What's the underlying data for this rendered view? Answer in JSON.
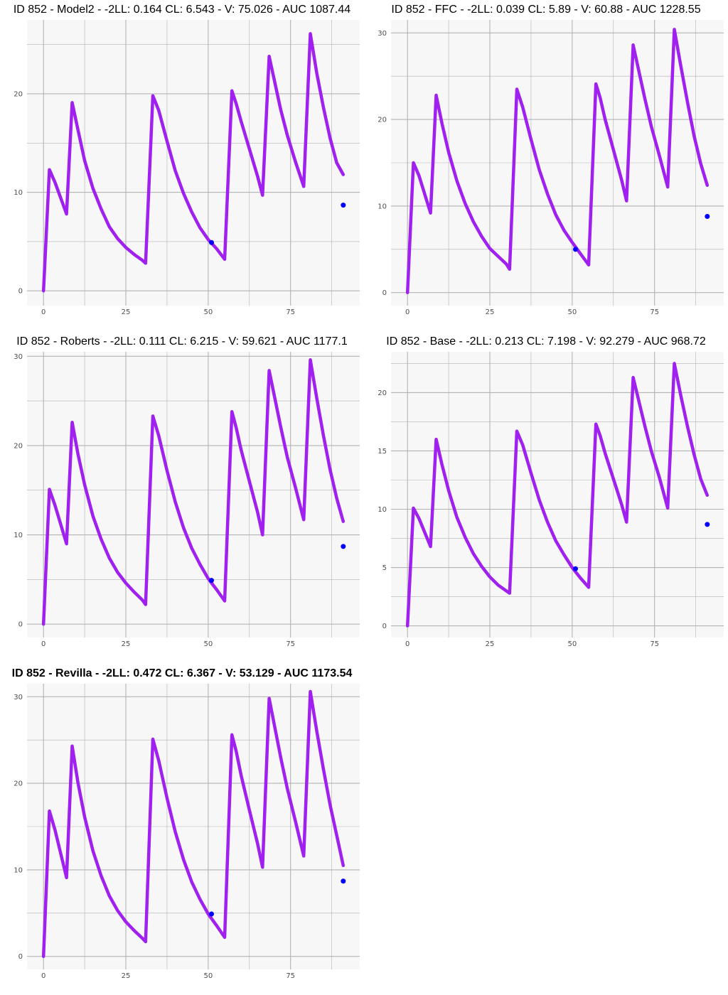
{
  "colors": {
    "curve": "#a020f0",
    "observed": "#0000ff",
    "panel_bg": "#f7f7f7",
    "grid": "#b3b3b3"
  },
  "chart_data": [
    {
      "type": "line",
      "title": "ID 852 - Model2 - -2LL: 0.164 CL: 6.543 - V: 75.026 - AUC 1087.44",
      "title_bold": false,
      "xlim": [
        -5,
        96
      ],
      "ylim": [
        -1.5,
        27.5
      ],
      "xticks": [
        0,
        25,
        50,
        75
      ],
      "yticks": [
        0,
        10,
        20
      ],
      "x": [
        0,
        1.8,
        3.5,
        7,
        8.7,
        10.5,
        12.5,
        15,
        17.5,
        20,
        22.5,
        25,
        27.5,
        30,
        31,
        33.2,
        35,
        37.5,
        40,
        42.5,
        45,
        47.5,
        50,
        52.5,
        55,
        57.2,
        58.5,
        60,
        62.5,
        65,
        66.5,
        68.5,
        72,
        74,
        76.5,
        79,
        81,
        83,
        85,
        87,
        89,
        91
      ],
      "y": [
        0,
        12.3,
        11,
        7.8,
        19.1,
        16.3,
        13.2,
        10.4,
        8.3,
        6.5,
        5.3,
        4.4,
        3.7,
        3.1,
        2.8,
        19.8,
        18.3,
        15.2,
        12.2,
        9.9,
        8.0,
        6.4,
        5.2,
        4.3,
        3.2,
        20.3,
        19,
        17.2,
        14.4,
        11.6,
        9.7,
        23.8,
        18.4,
        15.8,
        13.1,
        10.6,
        26.1,
        22,
        18.6,
        15.5,
        13.0,
        11.8
      ],
      "observed": [
        {
          "x": 51,
          "y": 4.9
        },
        {
          "x": 91,
          "y": 8.7
        }
      ]
    },
    {
      "type": "line",
      "title": "ID 852 - FFC - -2LL: 0.039 CL: 5.89 - V: 60.88 - AUC 1228.55",
      "title_bold": false,
      "xlim": [
        -5,
        96
      ],
      "ylim": [
        -1.5,
        31.5
      ],
      "xticks": [
        0,
        25,
        50,
        75
      ],
      "yticks": [
        0,
        10,
        20,
        30
      ],
      "x": [
        0,
        1.8,
        3.5,
        7,
        8.7,
        10.5,
        12.5,
        15,
        17.5,
        20,
        22.5,
        25,
        27.5,
        30,
        31,
        33.2,
        35,
        37.5,
        40,
        42.5,
        45,
        47.5,
        50,
        52.5,
        55,
        57.2,
        58.5,
        60,
        62.5,
        65,
        66.5,
        68.5,
        72,
        74,
        76.5,
        79,
        81,
        83,
        85,
        87,
        89,
        91
      ],
      "y": [
        0,
        15,
        13.5,
        9.2,
        22.8,
        19.5,
        16.2,
        12.9,
        10.3,
        8.2,
        6.5,
        5.1,
        4.2,
        3.3,
        2.7,
        23.5,
        21.4,
        17.7,
        14.2,
        11.4,
        9.0,
        7.2,
        5.8,
        4.5,
        3.2,
        24.1,
        22.5,
        20.0,
        16.5,
        13.0,
        10.6,
        28.6,
        22.5,
        19.2,
        15.8,
        12.2,
        30.4,
        26.1,
        22.0,
        18.1,
        14.9,
        12.4
      ],
      "observed": [
        {
          "x": 51,
          "y": 5
        },
        {
          "x": 91,
          "y": 8.8
        }
      ]
    },
    {
      "type": "line",
      "title": "ID 852 - Roberts - -2LL: 0.111 CL: 6.215 - V: 59.621 - AUC 1177.1",
      "title_bold": false,
      "xlim": [
        -5,
        96
      ],
      "ylim": [
        -1.5,
        30.5
      ],
      "xticks": [
        0,
        25,
        50,
        75
      ],
      "yticks": [
        0,
        10,
        20,
        30
      ],
      "x": [
        0,
        1.8,
        3.5,
        7,
        8.7,
        10.5,
        12.5,
        15,
        17.5,
        20,
        22.5,
        25,
        27.5,
        30,
        31,
        33.2,
        35,
        37.5,
        40,
        42.5,
        45,
        47.5,
        50,
        52.5,
        55,
        57.2,
        58.5,
        60,
        62.5,
        65,
        66.5,
        68.5,
        72,
        74,
        76.5,
        79,
        81,
        83,
        85,
        87,
        89,
        91
      ],
      "y": [
        0,
        15.1,
        13.3,
        9.0,
        22.6,
        19.0,
        15.6,
        12.1,
        9.5,
        7.4,
        5.8,
        4.6,
        3.6,
        2.7,
        2.2,
        23.3,
        21.1,
        17.2,
        13.7,
        10.8,
        8.5,
        6.7,
        5.1,
        3.9,
        2.6,
        23.8,
        22.0,
        19.5,
        16.0,
        12.5,
        10.0,
        28.4,
        22.1,
        18.7,
        15.3,
        11.7,
        29.6,
        25.2,
        21.1,
        17.3,
        14.1,
        11.5
      ],
      "observed": [
        {
          "x": 51,
          "y": 4.9
        },
        {
          "x": 91,
          "y": 8.7
        }
      ]
    },
    {
      "type": "line",
      "title": "ID 852 - Base - -2LL: 0.213 CL: 7.198 - V: 92.279 - AUC 968.72",
      "title_bold": false,
      "xlim": [
        -5,
        96
      ],
      "ylim": [
        -1,
        23.5
      ],
      "xticks": [
        0,
        25,
        50,
        75
      ],
      "yticks": [
        0,
        5,
        10,
        15,
        20
      ],
      "x": [
        0,
        1.8,
        3.5,
        7,
        8.7,
        10.5,
        12.5,
        15,
        17.5,
        20,
        22.5,
        25,
        27.5,
        30,
        31,
        33.2,
        35,
        37.5,
        40,
        42.5,
        45,
        47.5,
        50,
        52.5,
        55,
        57.2,
        58.5,
        60,
        62.5,
        65,
        66.5,
        68.5,
        72,
        74,
        76.5,
        79,
        81,
        83,
        85,
        87,
        89,
        91
      ],
      "y": [
        0,
        10.1,
        9.2,
        6.8,
        16.0,
        13.8,
        11.6,
        9.3,
        7.6,
        6.2,
        5.1,
        4.2,
        3.5,
        3.0,
        2.8,
        16.7,
        15.5,
        13.1,
        10.8,
        8.9,
        7.3,
        6.1,
        5.0,
        4.1,
        3.3,
        17.3,
        16.3,
        14.8,
        12.6,
        10.4,
        8.9,
        21.3,
        17.2,
        15.0,
        12.7,
        10.1,
        22.5,
        19.7,
        17.1,
        14.7,
        12.6,
        11.2
      ],
      "observed": [
        {
          "x": 51,
          "y": 4.9
        },
        {
          "x": 91,
          "y": 8.7
        }
      ]
    },
    {
      "type": "line",
      "title": "ID 852 - Revilla - -2LL: 0.472 CL: 6.367 - V: 53.129 - AUC 1173.54",
      "title_bold": true,
      "xlim": [
        -5,
        96
      ],
      "ylim": [
        -1.5,
        31.5
      ],
      "xticks": [
        0,
        25,
        50,
        75
      ],
      "yticks": [
        0,
        10,
        20,
        30
      ],
      "x": [
        0,
        1.8,
        3.5,
        7,
        8.7,
        10.5,
        12.5,
        15,
        17.5,
        20,
        22.5,
        25,
        27.5,
        30,
        31,
        33.2,
        35,
        37.5,
        40,
        42.5,
        45,
        47.5,
        50,
        52.5,
        55,
        57.2,
        58.5,
        60,
        62.5,
        65,
        66.5,
        68.5,
        72,
        74,
        76.5,
        79,
        81,
        83,
        85,
        87,
        89,
        91
      ],
      "y": [
        0,
        16.8,
        14.6,
        9.1,
        24.3,
        20.0,
        16.1,
        12.2,
        9.3,
        7.0,
        5.3,
        4.0,
        3.0,
        2.1,
        1.7,
        25.1,
        22.6,
        18.3,
        14.4,
        11.2,
        8.6,
        6.6,
        4.9,
        3.6,
        2.2,
        25.6,
        23.7,
        20.9,
        16.9,
        13.0,
        10.3,
        29.8,
        23.0,
        19.4,
        15.6,
        11.6,
        30.6,
        25.9,
        21.6,
        17.5,
        14.0,
        10.5
      ],
      "observed": [
        {
          "x": 51,
          "y": 4.9
        },
        {
          "x": 91,
          "y": 8.7
        }
      ]
    }
  ]
}
